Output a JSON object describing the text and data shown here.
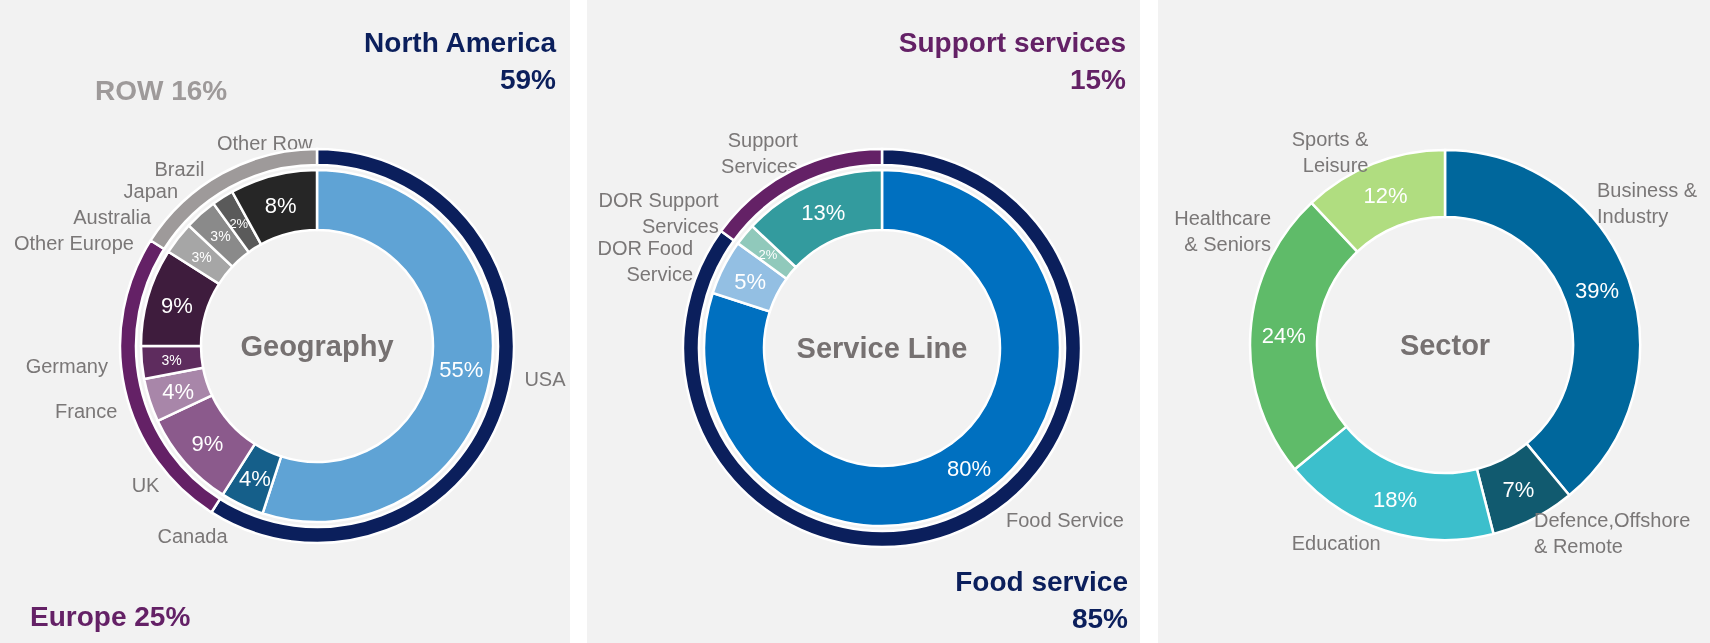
{
  "chart_data": [
    {
      "type": "donut",
      "title": "Geography",
      "categories": [
        "USA",
        "Canada",
        "UK",
        "France",
        "Germany",
        "Other Europe",
        "Australia",
        "Japan",
        "Brazil",
        "Other Row"
      ],
      "values": [
        55,
        4,
        9,
        4,
        3,
        9,
        3,
        3,
        2,
        8
      ],
      "value_labels": [
        "55%",
        "4%",
        "9%",
        "4%",
        "3%",
        "9%",
        "3%",
        "3%",
        "2%",
        "8%"
      ],
      "colors": [
        "#5fa3d5",
        "#155f8a",
        "#8b5a8c",
        "#a886a9",
        "#5e2c5e",
        "#3e1c3d",
        "#a6a6a6",
        "#8a8a8a",
        "#5a5a5a",
        "#262626"
      ]
    },
    {
      "type": "donut",
      "categories": [
        "North America",
        "Europe",
        "ROW"
      ],
      "values": [
        59,
        25,
        16
      ],
      "value_labels": [
        "59%",
        "25%",
        "16%"
      ],
      "colors": [
        "#0b1f5c",
        "#642166",
        "#9e9a9a"
      ]
    },
    {
      "type": "donut",
      "title": "Service Line",
      "categories": [
        "Food Service",
        "DOR Food Service",
        "DOR Support Services",
        "Support Services"
      ],
      "values": [
        80,
        5,
        2,
        13
      ],
      "value_labels": [
        "80%",
        "5%",
        "2%",
        "13%"
      ],
      "colors": [
        "#0070c0",
        "#93bfe3",
        "#90c9bb",
        "#339b9e"
      ]
    },
    {
      "type": "donut",
      "categories": [
        "Food service",
        "Support services"
      ],
      "values": [
        85,
        15
      ],
      "value_labels": [
        "85%",
        "15%"
      ],
      "colors": [
        "#0b1f5c",
        "#642166"
      ]
    },
    {
      "type": "donut",
      "title": "Sector",
      "categories": [
        "Business & Industry",
        "Defence,Offshore & Remote",
        "Education",
        "Healthcare & Seniors",
        "Sports & Leisure"
      ],
      "values": [
        39,
        7,
        18,
        24,
        12
      ],
      "value_labels": [
        "39%",
        "7%",
        "18%",
        "24%",
        "12%"
      ],
      "colors": [
        "#00679c",
        "#115a6f",
        "#3cbfcc",
        "#5fbb69",
        "#b0dd80"
      ]
    }
  ]
}
